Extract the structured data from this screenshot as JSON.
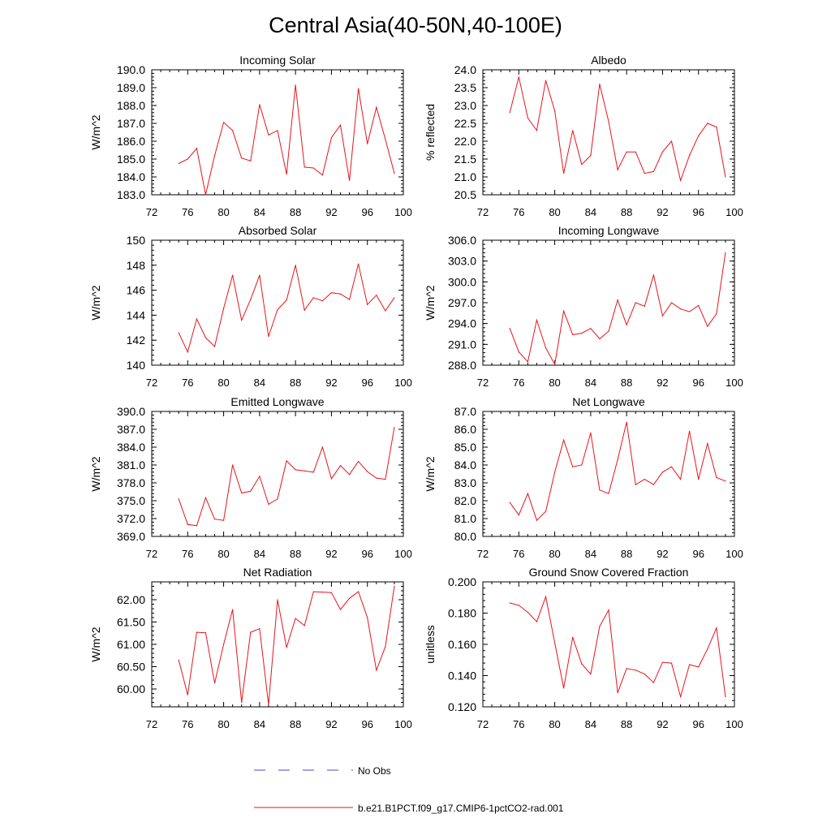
{
  "figure": {
    "title": "Central Asia(40-50N,40-100E)",
    "line_color": "#e8141a",
    "obs_color": "#4a4acc"
  },
  "legend": [
    {
      "label": "No Obs",
      "style": "dashed",
      "color": "#4a4acc"
    },
    {
      "label": "b.e21.B1PCT.f09_g17.CMIP6-1pctCO2-rad.001",
      "style": "solid",
      "color": "#e8141a"
    }
  ],
  "chart_data": [
    {
      "type": "line",
      "title": "Incoming Solar",
      "xlabel": "",
      "ylabel": "W/m^2",
      "xlim": [
        72,
        100
      ],
      "ylim": [
        183.0,
        190.0
      ],
      "xticks": [
        "72",
        "76",
        "80",
        "84",
        "88",
        "92",
        "96",
        "100"
      ],
      "yticks": [
        "183.0",
        "184.0",
        "185.0",
        "186.0",
        "187.0",
        "188.0",
        "189.0",
        "190.0"
      ],
      "grid": false,
      "x": [
        75,
        76,
        77,
        78,
        79,
        80,
        81,
        82,
        83,
        84,
        85,
        86,
        87,
        88,
        89,
        90,
        91,
        92,
        93,
        94,
        95,
        96,
        97,
        98,
        99
      ],
      "series": [
        {
          "name": "b.e21.B1PCT.f09_g17.CMIP6-1pctCO2-rad.001",
          "values": [
            184.75,
            185.0,
            185.6,
            183.0,
            185.2,
            187.05,
            186.6,
            185.05,
            184.9,
            188.05,
            186.35,
            186.6,
            184.15,
            189.15,
            184.55,
            184.5,
            184.1,
            186.2,
            186.9,
            183.8,
            188.95,
            185.85,
            187.9,
            186.1,
            184.2
          ]
        }
      ]
    },
    {
      "type": "line",
      "title": "Albedo",
      "xlabel": "",
      "ylabel": "% reflected",
      "xlim": [
        72,
        100
      ],
      "ylim": [
        20.5,
        24.0
      ],
      "xticks": [
        "72",
        "76",
        "80",
        "84",
        "88",
        "92",
        "96",
        "100"
      ],
      "yticks": [
        "20.5",
        "21.0",
        "21.5",
        "22.0",
        "22.5",
        "23.0",
        "23.5",
        "24.0"
      ],
      "grid": false,
      "x": [
        75,
        76,
        77,
        78,
        79,
        80,
        81,
        82,
        83,
        84,
        85,
        86,
        87,
        88,
        89,
        90,
        91,
        92,
        93,
        94,
        95,
        96,
        97,
        98,
        99
      ],
      "series": [
        {
          "name": "b.e21.B1PCT.f09_g17.CMIP6-1pctCO2-rad.001",
          "values": [
            22.8,
            23.8,
            22.65,
            22.3,
            23.7,
            22.85,
            21.1,
            22.3,
            21.35,
            21.6,
            23.6,
            22.55,
            21.2,
            21.7,
            21.7,
            21.1,
            21.15,
            21.7,
            22.0,
            20.9,
            21.6,
            22.15,
            22.5,
            22.4,
            21.0
          ]
        }
      ]
    },
    {
      "type": "line",
      "title": "Absorbed Solar",
      "xlabel": "",
      "ylabel": "W/m^2",
      "xlim": [
        72,
        100
      ],
      "ylim": [
        140,
        150
      ],
      "xticks": [
        "72",
        "76",
        "80",
        "84",
        "88",
        "92",
        "96",
        "100"
      ],
      "yticks": [
        "140",
        "142",
        "144",
        "146",
        "148",
        "150"
      ],
      "grid": false,
      "x": [
        75,
        76,
        77,
        78,
        79,
        80,
        81,
        82,
        83,
        84,
        85,
        86,
        87,
        88,
        89,
        90,
        91,
        92,
        93,
        94,
        95,
        96,
        97,
        98,
        99
      ],
      "series": [
        {
          "name": "b.e21.B1PCT.f09_g17.CMIP6-1pctCO2-rad.001",
          "values": [
            142.6,
            141.05,
            143.7,
            142.2,
            141.5,
            144.55,
            147.2,
            143.6,
            145.25,
            147.2,
            142.3,
            144.45,
            145.2,
            148.0,
            144.4,
            145.4,
            145.15,
            145.8,
            145.7,
            145.25,
            148.1,
            144.85,
            145.6,
            144.35,
            145.4
          ]
        }
      ]
    },
    {
      "type": "line",
      "title": "Incoming Longwave",
      "xlabel": "",
      "ylabel": "W/m^2",
      "xlim": [
        72,
        100
      ],
      "ylim": [
        288.0,
        306.0
      ],
      "xticks": [
        "72",
        "76",
        "80",
        "84",
        "88",
        "92",
        "96",
        "100"
      ],
      "yticks": [
        "288.0",
        "291.0",
        "294.0",
        "297.0",
        "300.0",
        "303.0",
        "306.0"
      ],
      "grid": false,
      "x": [
        75,
        76,
        77,
        78,
        79,
        80,
        81,
        82,
        83,
        84,
        85,
        86,
        87,
        88,
        89,
        90,
        91,
        92,
        93,
        94,
        95,
        96,
        97,
        98,
        99
      ],
      "series": [
        {
          "name": "b.e21.B1PCT.f09_g17.CMIP6-1pctCO2-rad.001",
          "values": [
            293.3,
            289.9,
            288.5,
            294.5,
            290.5,
            288.1,
            295.8,
            292.4,
            292.6,
            293.3,
            291.8,
            292.9,
            297.4,
            293.8,
            297.0,
            296.5,
            301.0,
            295.1,
            297.0,
            296.1,
            295.7,
            296.6,
            293.6,
            295.4,
            304.2
          ]
        }
      ]
    },
    {
      "type": "line",
      "title": "Emitted Longwave",
      "xlabel": "",
      "ylabel": "W/m^2",
      "xlim": [
        72,
        100
      ],
      "ylim": [
        369.0,
        390.0
      ],
      "xticks": [
        "72",
        "76",
        "80",
        "84",
        "88",
        "92",
        "96",
        "100"
      ],
      "yticks": [
        "369.0",
        "372.0",
        "375.0",
        "378.0",
        "381.0",
        "384.0",
        "387.0",
        "390.0"
      ],
      "grid": false,
      "x": [
        75,
        76,
        77,
        78,
        79,
        80,
        81,
        82,
        83,
        84,
        85,
        86,
        87,
        88,
        89,
        90,
        91,
        92,
        93,
        94,
        95,
        96,
        97,
        98,
        99
      ],
      "series": [
        {
          "name": "b.e21.B1PCT.f09_g17.CMIP6-1pctCO2-rad.001",
          "values": [
            375.3,
            371.0,
            370.8,
            375.5,
            371.9,
            371.7,
            381.0,
            376.3,
            376.6,
            379.1,
            374.4,
            375.3,
            381.7,
            380.2,
            380.0,
            379.8,
            384.0,
            378.7,
            380.9,
            379.4,
            381.6,
            379.9,
            378.8,
            378.6,
            387.3
          ]
        }
      ]
    },
    {
      "type": "line",
      "title": "Net Longwave",
      "xlabel": "",
      "ylabel": "W/m^2",
      "xlim": [
        72,
        100
      ],
      "ylim": [
        80.0,
        87.0
      ],
      "xticks": [
        "72",
        "76",
        "80",
        "84",
        "88",
        "92",
        "96",
        "100"
      ],
      "yticks": [
        "80.0",
        "81.0",
        "82.0",
        "83.0",
        "84.0",
        "85.0",
        "86.0",
        "87.0"
      ],
      "grid": false,
      "x": [
        75,
        76,
        77,
        78,
        79,
        80,
        81,
        82,
        83,
        84,
        85,
        86,
        87,
        88,
        89,
        90,
        91,
        92,
        93,
        94,
        95,
        96,
        97,
        98,
        99
      ],
      "series": [
        {
          "name": "b.e21.B1PCT.f09_g17.CMIP6-1pctCO2-rad.001",
          "values": [
            81.9,
            81.2,
            82.4,
            80.9,
            81.4,
            83.6,
            85.4,
            83.9,
            84.0,
            85.8,
            82.6,
            82.4,
            84.3,
            86.4,
            82.9,
            83.2,
            82.9,
            83.6,
            83.9,
            83.2,
            85.9,
            83.2,
            85.2,
            83.3,
            83.1
          ]
        }
      ]
    },
    {
      "type": "line",
      "title": "Net Radiation",
      "xlabel": "",
      "ylabel": "W/m^2",
      "xlim": [
        72,
        100
      ],
      "ylim": [
        59.6,
        62.4
      ],
      "xticks": [
        "72",
        "76",
        "80",
        "84",
        "88",
        "92",
        "96",
        "100"
      ],
      "yticks": [
        "60.00",
        "60.50",
        "61.00",
        "61.50",
        "62.00"
      ],
      "grid": false,
      "x": [
        75,
        76,
        77,
        78,
        79,
        80,
        81,
        82,
        83,
        84,
        85,
        86,
        87,
        88,
        89,
        90,
        91,
        92,
        93,
        94,
        95,
        96,
        97,
        98,
        99
      ],
      "series": [
        {
          "name": "b.e21.B1PCT.f09_g17.CMIP6-1pctCO2-rad.001",
          "values": [
            60.65,
            59.87,
            61.27,
            61.26,
            60.13,
            61.0,
            61.78,
            59.7,
            61.27,
            61.35,
            59.65,
            62.0,
            60.93,
            61.58,
            61.42,
            62.18,
            62.17,
            62.16,
            61.78,
            62.03,
            62.18,
            61.6,
            60.42,
            60.95,
            62.3
          ]
        }
      ]
    },
    {
      "type": "line",
      "title": "Ground Snow Covered Fraction",
      "xlabel": "",
      "ylabel": "unitless",
      "xlim": [
        72,
        100
      ],
      "ylim": [
        0.12,
        0.2
      ],
      "xticks": [
        "72",
        "76",
        "80",
        "84",
        "88",
        "92",
        "96",
        "100"
      ],
      "yticks": [
        "0.120",
        "0.140",
        "0.160",
        "0.180",
        "0.200"
      ],
      "grid": false,
      "x": [
        75,
        76,
        77,
        78,
        79,
        80,
        81,
        82,
        83,
        84,
        85,
        86,
        87,
        88,
        89,
        90,
        91,
        92,
        93,
        94,
        95,
        96,
        97,
        98,
        99
      ],
      "series": [
        {
          "name": "b.e21.B1PCT.f09_g17.CMIP6-1pctCO2-rad.001",
          "values": [
            0.1865,
            0.185,
            0.1805,
            0.1745,
            0.1905,
            0.161,
            0.132,
            0.1645,
            0.1475,
            0.141,
            0.1715,
            0.182,
            0.129,
            0.1445,
            0.1435,
            0.141,
            0.1355,
            0.1485,
            0.148,
            0.1265,
            0.147,
            0.1455,
            0.157,
            0.1705,
            0.1265
          ]
        }
      ]
    }
  ]
}
